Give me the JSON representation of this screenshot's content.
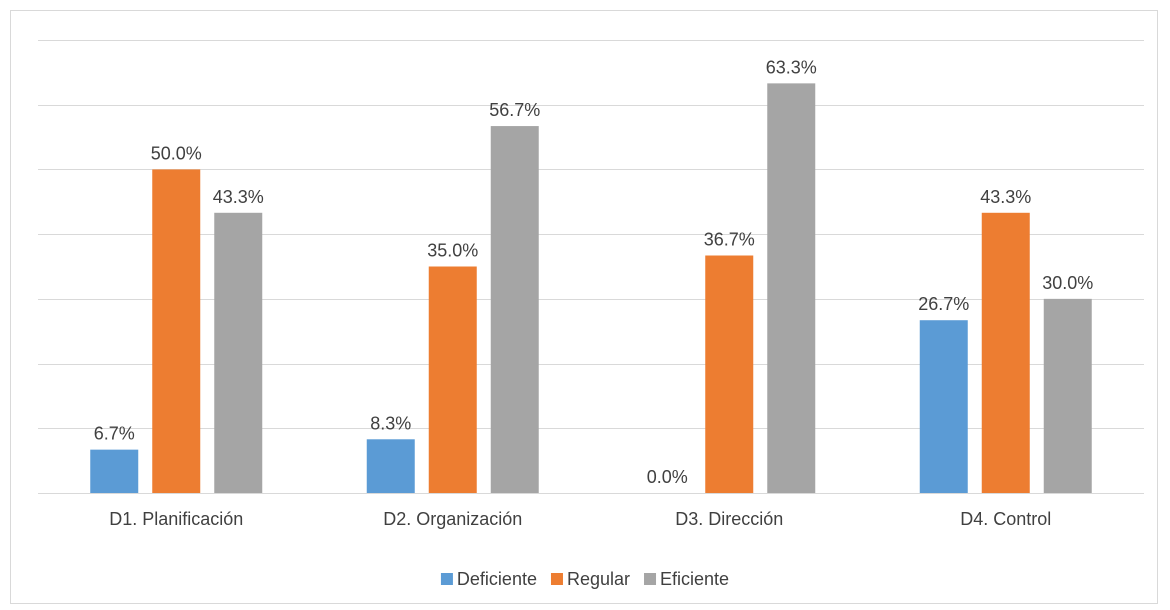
{
  "chart_data": {
    "type": "bar",
    "title": "",
    "xlabel": "",
    "ylabel": "",
    "ylim": [
      0,
      70
    ],
    "grid": true,
    "legend_position": "bottom",
    "categories": [
      "D1. Planificación",
      "D2. Organización",
      "D3. Dirección",
      "D4. Control"
    ],
    "series": [
      {
        "name": "Deficiente",
        "color": "#5b9bd5",
        "values": [
          6.7,
          8.3,
          0.0,
          26.7
        ],
        "labels": [
          "6.7%",
          "8.3%",
          "0.0%",
          "26.7%"
        ]
      },
      {
        "name": "Regular",
        "color": "#ed7d31",
        "values": [
          50.0,
          35.0,
          36.7,
          43.3
        ],
        "labels": [
          "50.0%",
          "35.0%",
          "36.7%",
          "43.3%"
        ]
      },
      {
        "name": "Eficiente",
        "color": "#a5a5a5",
        "values": [
          43.3,
          56.7,
          63.3,
          30.0
        ],
        "labels": [
          "43.3%",
          "56.7%",
          "63.3%",
          "30.0%"
        ]
      }
    ]
  }
}
